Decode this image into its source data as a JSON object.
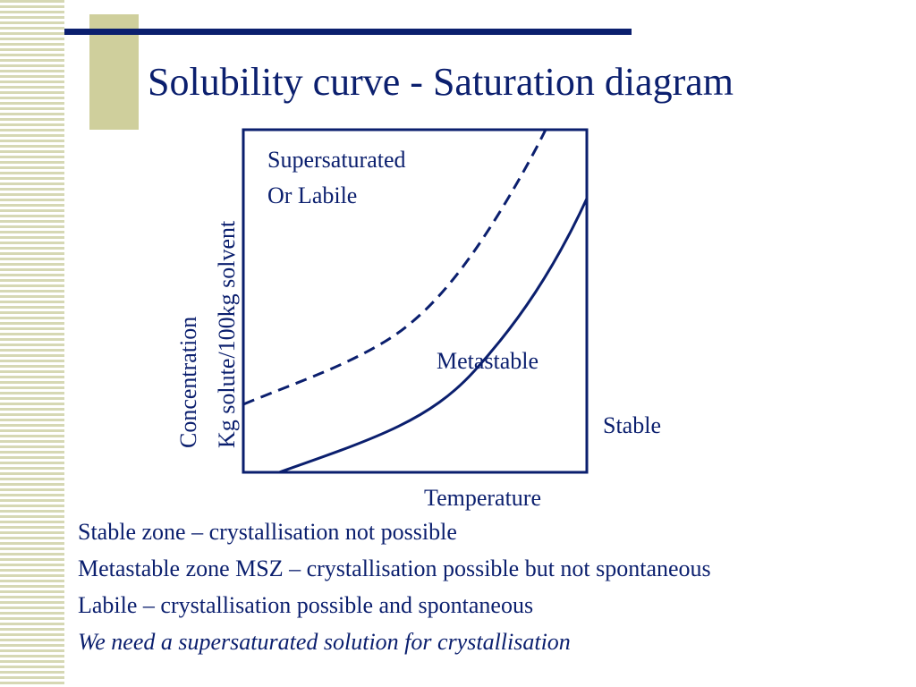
{
  "slide": {
    "title": "Solubility curve - Saturation diagram",
    "colors": {
      "text": "#0b1f6e",
      "accent": "#cfcf9c",
      "stripes": "#d6d8b4"
    }
  },
  "diagram": {
    "y_label_line1": "Concentration",
    "y_label_line2": "Kg solute/100kg solvent",
    "x_label": "Temperature",
    "region_supersaturated_line1": "Supersaturated",
    "region_supersaturated_line2": "Or Labile",
    "region_metastable": "Metastable",
    "region_stable": "Stable"
  },
  "notes": {
    "line1": "Stable zone – crystallisation not possible",
    "line2": "Metastable zone MSZ – crystallisation possible but not spontaneous",
    "line3": "Labile – crystallisation possible and spontaneous",
    "line4": "We need a supersaturated solution for crystallisation"
  }
}
